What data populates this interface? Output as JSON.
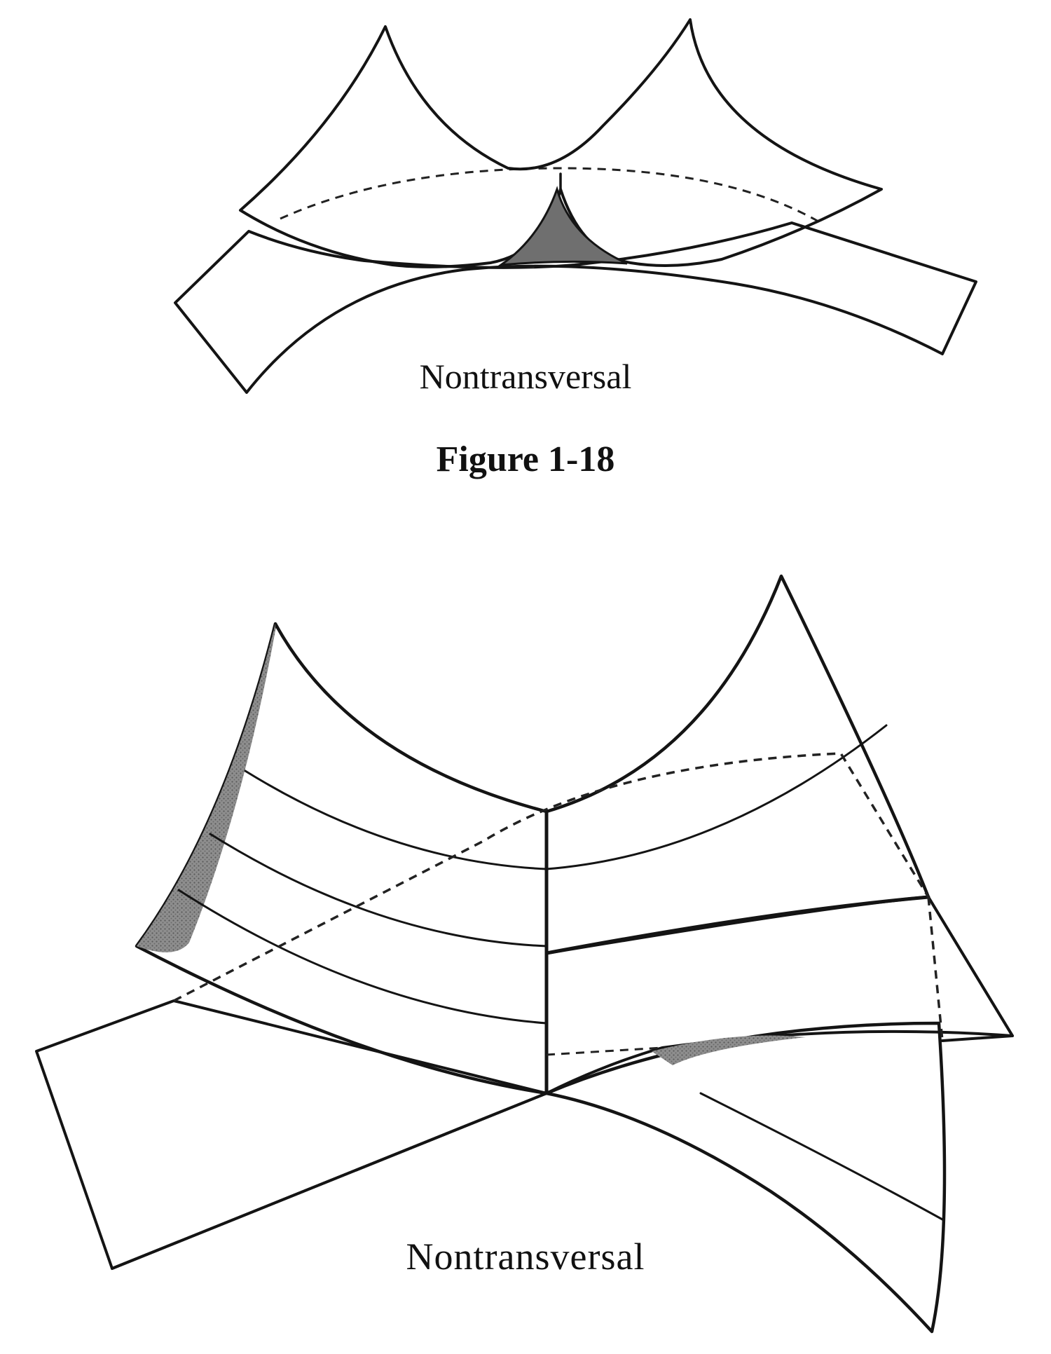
{
  "figure_top": {
    "caption": "Nontransversal"
  },
  "figure_label": "Figure 1-18",
  "figure_bottom": {
    "caption": "Nontransversal"
  },
  "colors": {
    "ink": "#141414",
    "shade": "#9a9a9a",
    "shade_dark": "#6f6f6f",
    "background": "#ffffff"
  }
}
